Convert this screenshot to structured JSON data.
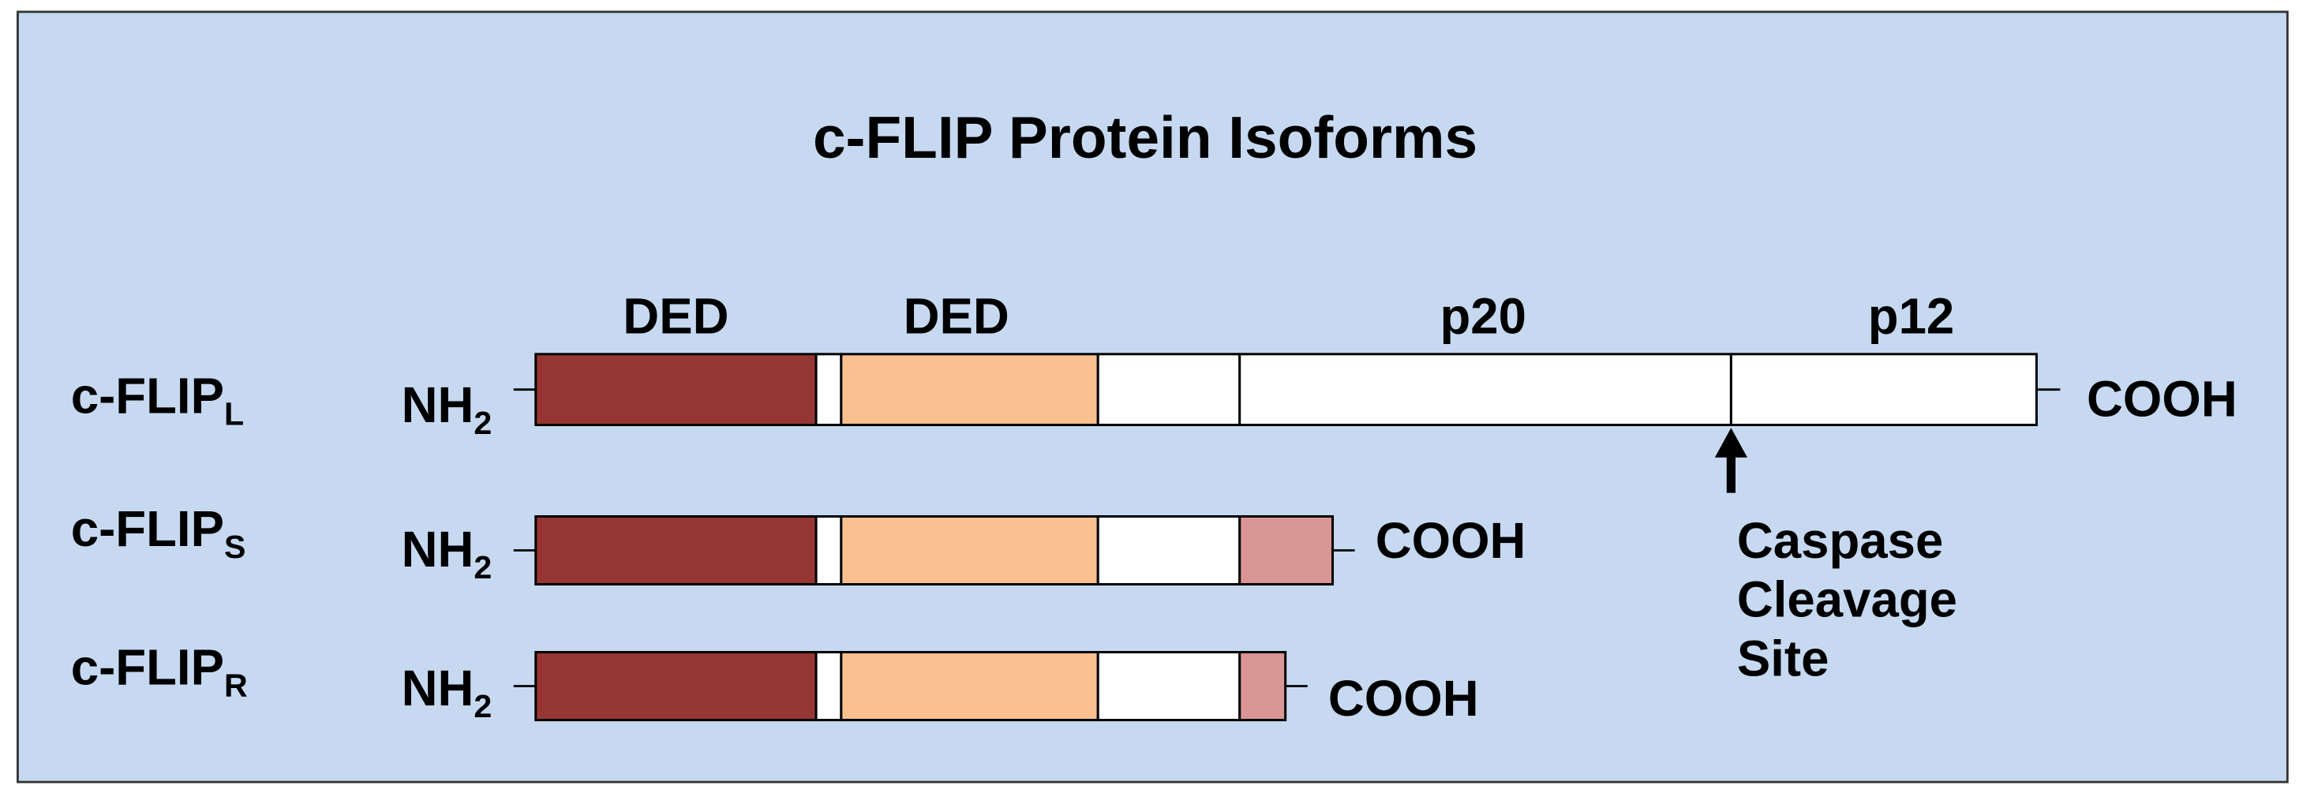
{
  "title": "c-FLIP Protein Isoforms",
  "domain_labels": [
    "DED",
    "DED",
    "p20",
    "p12"
  ],
  "isoforms": [
    {
      "name": "c-FLIP",
      "subscript": "L",
      "n_terminus": {
        "text": "NH",
        "subscript": "2"
      },
      "c_terminus": "COOH"
    },
    {
      "name": "c-FLIP",
      "subscript": "S",
      "n_terminus": {
        "text": "NH",
        "subscript": "2"
      },
      "c_terminus": "COOH"
    },
    {
      "name": "c-FLIP",
      "subscript": "R",
      "n_terminus": {
        "text": "NH",
        "subscript": "2"
      },
      "c_terminus": "COOH"
    }
  ],
  "cleavage_site": [
    "Caspase",
    "Cleavage",
    "Site"
  ]
}
